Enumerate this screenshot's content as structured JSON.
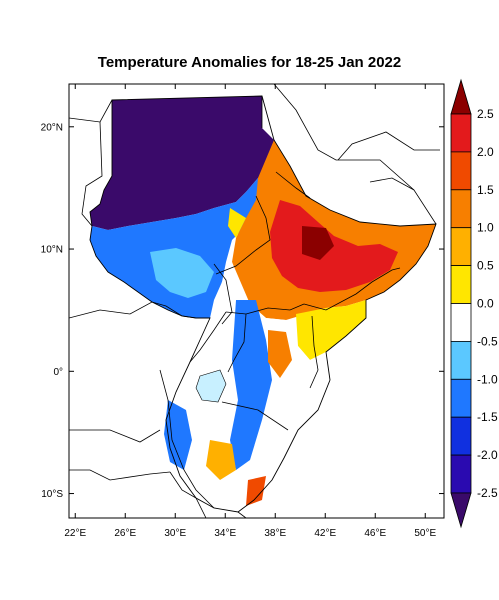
{
  "title": "Temperature Anomalies for 18-25 Jan 2022",
  "map": {
    "x_ticks": [
      {
        "lon": 22,
        "label": "22°E"
      },
      {
        "lon": 26,
        "label": "26°E"
      },
      {
        "lon": 30,
        "label": "30°E"
      },
      {
        "lon": 34,
        "label": "34°E"
      },
      {
        "lon": 38,
        "label": "38°E"
      },
      {
        "lon": 42,
        "label": "42°E"
      },
      {
        "lon": 46,
        "label": "46°E"
      },
      {
        "lon": 50,
        "label": "50°E"
      }
    ],
    "y_ticks": [
      {
        "lat": 20,
        "label": "20°N"
      },
      {
        "lat": 10,
        "label": "10°N"
      },
      {
        "lat": 0,
        "label": "0°"
      },
      {
        "lat": -10,
        "label": "10°S"
      }
    ],
    "lon_range": [
      21.5,
      51.5
    ],
    "lat_range": [
      -12,
      23.5
    ]
  },
  "colorbar": {
    "levels": [
      "2.5",
      "2.0",
      "1.5",
      "1.0",
      "0.5",
      "0.0",
      "-0.5",
      "-1.0",
      "-1.5",
      "-2.0",
      "-2.5"
    ],
    "colors": [
      "#8b0000",
      "#e31a1c",
      "#f04a00",
      "#f77f00",
      "#ffb000",
      "#ffe600",
      "#ffffff",
      "#5bc8ff",
      "#1f78ff",
      "#1030e0",
      "#2a0ab0",
      "#3a0a6a"
    ]
  },
  "palette": {
    "deep_purple": "#3a0a6a",
    "dark_blue": "#1030e0",
    "blue": "#1f78ff",
    "light_blue": "#5bc8ff",
    "white": "#ffffff",
    "yellow": "#ffe600",
    "orange": "#f77f00",
    "red_orange": "#f04a00",
    "red": "#e31a1c",
    "dark_red": "#8b0000",
    "lake": "#c8f0ff"
  }
}
